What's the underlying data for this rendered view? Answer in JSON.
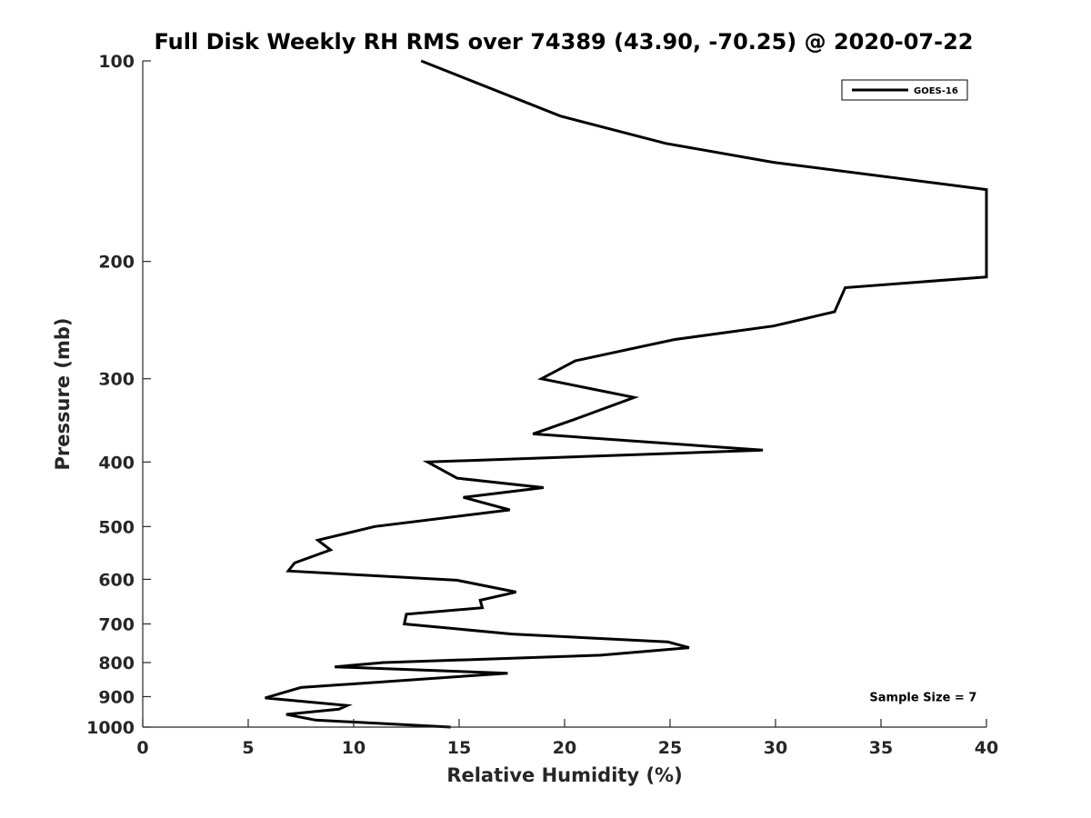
{
  "chart_data": {
    "type": "line",
    "title": "Full Disk Weekly RH RMS over 74389 (43.90, -70.25) @ 2020-07-22",
    "xlabel": "Relative Humidity (%)",
    "ylabel": "Pressure (mb)",
    "xlim": [
      0,
      40
    ],
    "ylim": [
      100,
      1000
    ],
    "yscale": "log",
    "yreversed": true,
    "grid": false,
    "legend_position": "top-right",
    "x_ticks": [
      0,
      5,
      10,
      15,
      20,
      25,
      30,
      35,
      40
    ],
    "x_tick_labels": [
      "0",
      "5",
      "10",
      "15",
      "20",
      "25",
      "30",
      "35",
      "40"
    ],
    "y_ticks": [
      100,
      200,
      300,
      400,
      500,
      600,
      700,
      800,
      900,
      1000
    ],
    "y_tick_labels": [
      "100",
      "200",
      "300",
      "400",
      "500",
      "600",
      "700",
      "800",
      "900",
      "1000"
    ],
    "series": [
      {
        "name": "GOES-16",
        "color": "#000000",
        "points": [
          [
            13.2,
            100
          ],
          [
            19.8,
            121
          ],
          [
            24.8,
            133
          ],
          [
            29.9,
            142
          ],
          [
            40,
            156
          ],
          [
            40,
            211
          ],
          [
            33.3,
            219
          ],
          [
            32.8,
            238
          ],
          [
            29.9,
            250
          ],
          [
            25.2,
            262
          ],
          [
            20.5,
            282
          ],
          [
            18.9,
            300
          ],
          [
            23.3,
            320
          ],
          [
            20.5,
            345
          ],
          [
            18.5,
            363
          ],
          [
            29.4,
            384
          ],
          [
            13.5,
            400
          ],
          [
            14.9,
            423
          ],
          [
            19.0,
            437
          ],
          [
            15.2,
            452
          ],
          [
            17.4,
            472
          ],
          [
            11.0,
            500
          ],
          [
            8.3,
            524
          ],
          [
            8.9,
            542
          ],
          [
            7.2,
            567
          ],
          [
            6.9,
            583
          ],
          [
            14.9,
            602
          ],
          [
            17.7,
            627
          ],
          [
            16.0,
            645
          ],
          [
            16.1,
            662
          ],
          [
            12.5,
            677
          ],
          [
            12.4,
            700
          ],
          [
            17.5,
            725
          ],
          [
            24.9,
            745
          ],
          [
            25.9,
            760
          ],
          [
            21.7,
            780
          ],
          [
            11.4,
            800
          ],
          [
            9.1,
            812
          ],
          [
            17.3,
            830
          ],
          [
            7.5,
            872
          ],
          [
            5.8,
            904
          ],
          [
            9.7,
            928
          ],
          [
            9.3,
            940
          ],
          [
            6.8,
            957
          ],
          [
            8.2,
            976
          ],
          [
            14.6,
            1000
          ]
        ]
      }
    ],
    "legend_entries": [
      "GOES-16"
    ],
    "annotations": [
      {
        "text": "Sample Size = 7",
        "x": 37.0,
        "y": 900
      }
    ]
  }
}
